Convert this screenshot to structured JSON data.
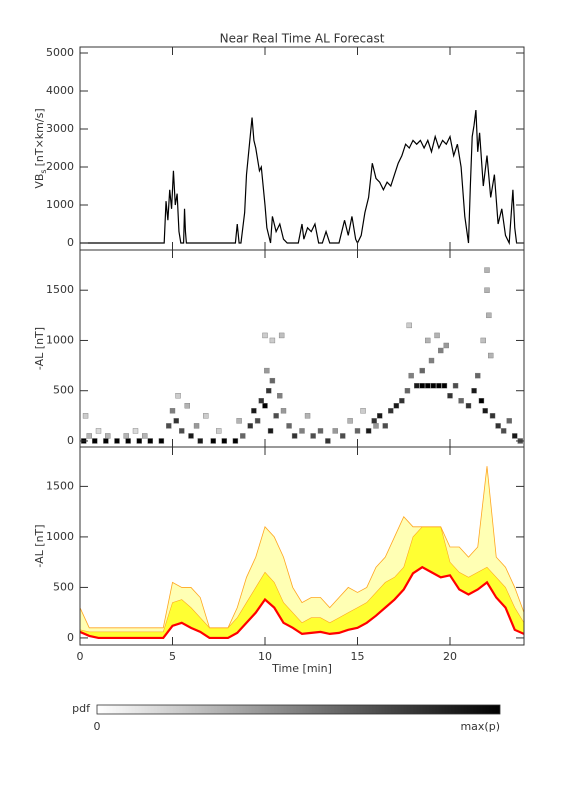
{
  "chart_data": [
    {
      "type": "line",
      "title": "Near Real Time AL Forecast",
      "ylabel_main": "VB",
      "ylabel_sub": "s",
      "ylabel_unit": "[nT×km/s]",
      "color": "#000000",
      "x": [
        0,
        4.55,
        4.65,
        4.75,
        4.85,
        4.95,
        5.05,
        5.15,
        5.25,
        5.35,
        5.45,
        5.6,
        5.65,
        5.7,
        5.75,
        8.4,
        8.5,
        8.6,
        8.7,
        8.9,
        9.0,
        9.1,
        9.2,
        9.3,
        9.4,
        9.5,
        9.6,
        9.7,
        9.8,
        9.9,
        10.0,
        10.1,
        10.2,
        10.3,
        10.4,
        10.6,
        10.8,
        11.0,
        11.2,
        11.5,
        11.8,
        12.0,
        12.1,
        12.3,
        12.5,
        12.7,
        12.9,
        13.1,
        13.3,
        13.5,
        14.0,
        14.3,
        14.5,
        14.7,
        14.9,
        15.0,
        15.2,
        15.4,
        15.6,
        15.8,
        16.0,
        16.2,
        16.4,
        16.6,
        16.8,
        17.0,
        17.2,
        17.4,
        17.6,
        17.8,
        18.0,
        18.2,
        18.4,
        18.6,
        18.8,
        19.0,
        19.2,
        19.4,
        19.6,
        19.8,
        20.0,
        20.2,
        20.4,
        20.6,
        20.8,
        21.0,
        21.1,
        21.2,
        21.3,
        21.4,
        21.5,
        21.6,
        21.8,
        22.0,
        22.2,
        22.4,
        22.6,
        22.8,
        23.0,
        23.2,
        23.4,
        23.5,
        23.6,
        23.7,
        24
      ],
      "values": [
        0,
        0,
        1100,
        600,
        1400,
        900,
        1900,
        1000,
        1300,
        300,
        0,
        0,
        900,
        300,
        0,
        0,
        500,
        0,
        0,
        800,
        1800,
        2300,
        2800,
        3300,
        2700,
        2500,
        2200,
        1900,
        2000,
        1500,
        1000,
        400,
        200,
        0,
        700,
        300,
        500,
        100,
        0,
        0,
        0,
        500,
        100,
        400,
        300,
        500,
        0,
        0,
        300,
        0,
        0,
        600,
        200,
        700,
        100,
        0,
        200,
        800,
        1200,
        2100,
        1700,
        1600,
        1400,
        1600,
        1500,
        1800,
        2100,
        2300,
        2600,
        2500,
        2700,
        2600,
        2700,
        2500,
        2700,
        2400,
        2800,
        2500,
        2700,
        2600,
        2800,
        2300,
        2600,
        2000,
        700,
        0,
        1500,
        2800,
        3100,
        3500,
        2400,
        2900,
        1500,
        2300,
        1200,
        1800,
        500,
        900,
        200,
        0,
        1400,
        400,
        0,
        0,
        0
      ],
      "xlim": [
        0,
        24
      ],
      "xticks": [
        0,
        5,
        10,
        15,
        20
      ],
      "ylim": [
        -184,
        5158
      ],
      "yticks": [
        0,
        1000,
        2000,
        3000,
        4000,
        5000
      ]
    },
    {
      "type": "heatmap",
      "ylabel": "-AL [nT]",
      "x": [
        0.2,
        0.8,
        1.4,
        2.0,
        2.6,
        3.2,
        3.8,
        4.4,
        0.5,
        1.5,
        2.5,
        3.5,
        0.3,
        1.0,
        3.0,
        4.8,
        5.0,
        5.2,
        5.5,
        5.3,
        5.8,
        6.0,
        6.3,
        6.8,
        6.5,
        7.2,
        7.8,
        8.4,
        7.5,
        8.6,
        8.8,
        9.2,
        9.4,
        9.6,
        9.8,
        10.0,
        10.2,
        10.4,
        10.1,
        10.6,
        10.3,
        10.8,
        11.0,
        10.0,
        10.4,
        10.9,
        11.3,
        11.6,
        12.0,
        12.3,
        12.6,
        13.0,
        13.4,
        13.8,
        14.2,
        14.6,
        15.0,
        15.3,
        15.6,
        15.9,
        16.2,
        16.5,
        16.8,
        17.1,
        17.4,
        17.7,
        17.9,
        17.8,
        18.2,
        18.5,
        18.8,
        19.1,
        19.4,
        19.7,
        18.5,
        19.0,
        19.5,
        18.8,
        19.3,
        19.8,
        20.0,
        20.3,
        20.6,
        21.0,
        21.3,
        21.5,
        21.7,
        21.9,
        22.0,
        22.0,
        22.1,
        22.2,
        22.3,
        22.6,
        22.9,
        23.2,
        23.5,
        23.8,
        21.8,
        16.0
      ],
      "y": [
        0,
        0,
        0,
        0,
        0,
        0,
        0,
        0,
        50,
        50,
        50,
        50,
        250,
        100,
        100,
        150,
        300,
        200,
        100,
        450,
        350,
        50,
        150,
        250,
        0,
        0,
        0,
        0,
        100,
        200,
        50,
        150,
        300,
        200,
        400,
        350,
        500,
        600,
        700,
        250,
        100,
        450,
        300,
        1050,
        1000,
        1050,
        150,
        50,
        100,
        250,
        50,
        100,
        0,
        100,
        50,
        200,
        100,
        300,
        100,
        200,
        250,
        150,
        300,
        350,
        400,
        500,
        650,
        1150,
        550,
        550,
        550,
        550,
        550,
        550,
        700,
        800,
        900,
        1000,
        1050,
        950,
        450,
        550,
        400,
        350,
        500,
        650,
        400,
        300,
        1700,
        1500,
        1250,
        850,
        250,
        150,
        100,
        200,
        50,
        0,
        1000,
        150
      ],
      "p": [
        1,
        1,
        1,
        1,
        1,
        1,
        1,
        1,
        0.3,
        0.3,
        0.3,
        0.3,
        0.2,
        0.15,
        0.15,
        0.7,
        0.5,
        0.8,
        0.7,
        0.2,
        0.3,
        0.9,
        0.4,
        0.2,
        0.9,
        1,
        1,
        1,
        0.2,
        0.3,
        0.6,
        0.8,
        0.9,
        0.7,
        0.8,
        1,
        0.8,
        0.6,
        0.4,
        0.7,
        0.9,
        0.5,
        0.4,
        0.2,
        0.2,
        0.25,
        0.6,
        0.8,
        0.5,
        0.3,
        0.7,
        0.6,
        0.8,
        0.4,
        0.7,
        0.3,
        0.6,
        0.2,
        0.9,
        0.8,
        0.9,
        0.7,
        0.8,
        0.9,
        0.8,
        0.6,
        0.5,
        0.2,
        0.9,
        1,
        1,
        1,
        1,
        1,
        0.6,
        0.5,
        0.5,
        0.3,
        0.3,
        0.4,
        0.8,
        0.7,
        0.6,
        0.8,
        0.9,
        0.6,
        1,
        0.9,
        0.3,
        0.3,
        0.3,
        0.3,
        0.8,
        0.8,
        0.7,
        0.6,
        0.9,
        0.7,
        0.25,
        0.4
      ],
      "xlim": [
        0,
        24
      ],
      "xticks": [
        0,
        5,
        10,
        15,
        20
      ],
      "ylim": [
        -60,
        1900
      ],
      "yticks": [
        0,
        500,
        1000,
        1500
      ]
    },
    {
      "type": "band",
      "ylabel": "-AL [nT]",
      "xlabel": "Time [min]",
      "median_color": "#ff0000",
      "band_color": "#ffff33",
      "outer_color": "#ffffb4",
      "edge_color": "#ffa520",
      "x": [
        0,
        0.5,
        1,
        1.5,
        2,
        2.5,
        3,
        3.5,
        4,
        4.5,
        5,
        5.5,
        6,
        6.5,
        7,
        7.5,
        8,
        8.5,
        9,
        9.5,
        10,
        10.5,
        11,
        11.5,
        12,
        12.5,
        13,
        13.5,
        14,
        14.5,
        15,
        15.5,
        16,
        16.5,
        17,
        17.5,
        18,
        18.5,
        19,
        19.5,
        20,
        20.5,
        21,
        21.5,
        22,
        22.5,
        23,
        23.5,
        24
      ],
      "median": [
        60,
        20,
        0,
        0,
        0,
        0,
        0,
        0,
        0,
        0,
        120,
        150,
        100,
        60,
        0,
        0,
        0,
        50,
        150,
        250,
        380,
        300,
        150,
        100,
        40,
        50,
        60,
        40,
        50,
        80,
        100,
        150,
        220,
        300,
        380,
        480,
        640,
        700,
        650,
        600,
        620,
        480,
        430,
        480,
        550,
        400,
        300,
        80,
        40
      ],
      "upper": [
        80,
        60,
        60,
        60,
        60,
        60,
        60,
        60,
        60,
        60,
        350,
        380,
        300,
        200,
        100,
        100,
        100,
        200,
        350,
        500,
        650,
        550,
        350,
        250,
        150,
        200,
        200,
        150,
        200,
        250,
        300,
        350,
        450,
        550,
        600,
        700,
        1000,
        1100,
        1100,
        1100,
        750,
        650,
        600,
        650,
        700,
        600,
        500,
        300,
        150
      ],
      "outer_upper": [
        300,
        100,
        100,
        100,
        100,
        100,
        100,
        100,
        100,
        100,
        550,
        500,
        500,
        400,
        100,
        100,
        100,
        300,
        600,
        800,
        1100,
        1000,
        800,
        500,
        350,
        400,
        400,
        300,
        400,
        500,
        450,
        500,
        700,
        800,
        1000,
        1200,
        1100,
        1100,
        1100,
        1100,
        900,
        900,
        800,
        900,
        1700,
        800,
        700,
        500,
        250
      ],
      "xlim": [
        0,
        24
      ],
      "xticks": [
        0,
        5,
        10,
        15,
        20
      ],
      "ylim": [
        -70,
        1890
      ],
      "yticks": [
        0,
        500,
        1000,
        1500
      ]
    }
  ],
  "colorbar": {
    "label": "pdf",
    "min": 0,
    "max_label": "max(p)"
  }
}
